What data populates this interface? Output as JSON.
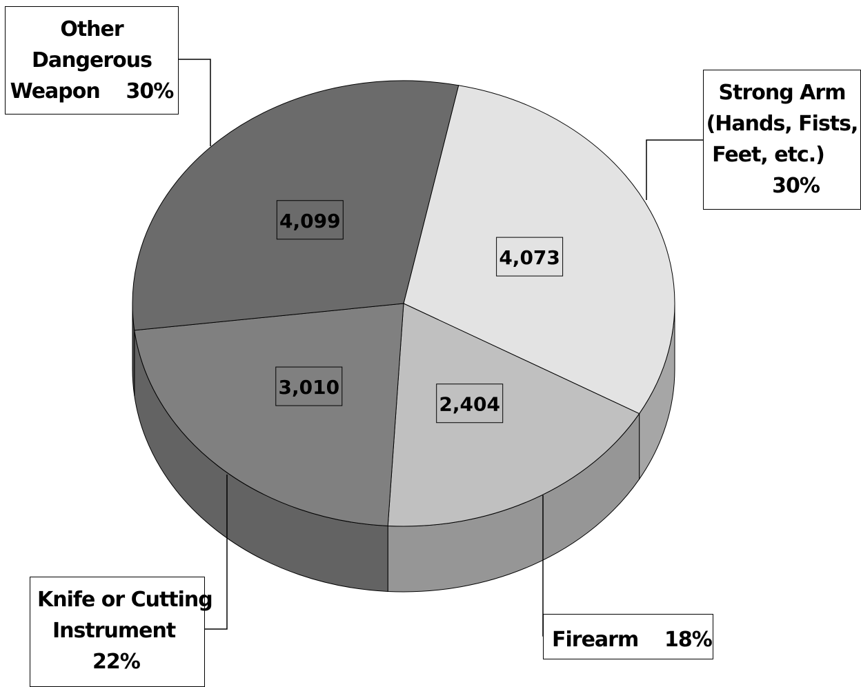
{
  "chart_data": {
    "type": "pie",
    "title": "",
    "style": "3d",
    "slices": [
      {
        "label_lines": [
          "Strong Arm",
          "(Hands, Fists,",
          "Feet, etc.)",
          "30%"
        ],
        "value": 4073,
        "value_label": "4,073",
        "percent": 30,
        "color": "#e3e3e3",
        "side_color": "#a6a6a6"
      },
      {
        "label_lines": [
          "Firearm    18%"
        ],
        "value": 2404,
        "value_label": "2,404",
        "percent": 18,
        "color": "#c0c0c0",
        "side_color": "#969696"
      },
      {
        "label_lines": [
          "Knife or Cutting",
          "Instrument",
          "22%"
        ],
        "value": 3010,
        "value_label": "3,010",
        "percent": 22,
        "color": "#808080",
        "side_color": "#636363"
      },
      {
        "label_lines": [
          "Other",
          "Dangerous",
          "Weapon    30%"
        ],
        "value": 4099,
        "value_label": "4,099",
        "percent": 30,
        "color": "#6b6b6b",
        "side_color": "#4e4e4e"
      }
    ]
  }
}
